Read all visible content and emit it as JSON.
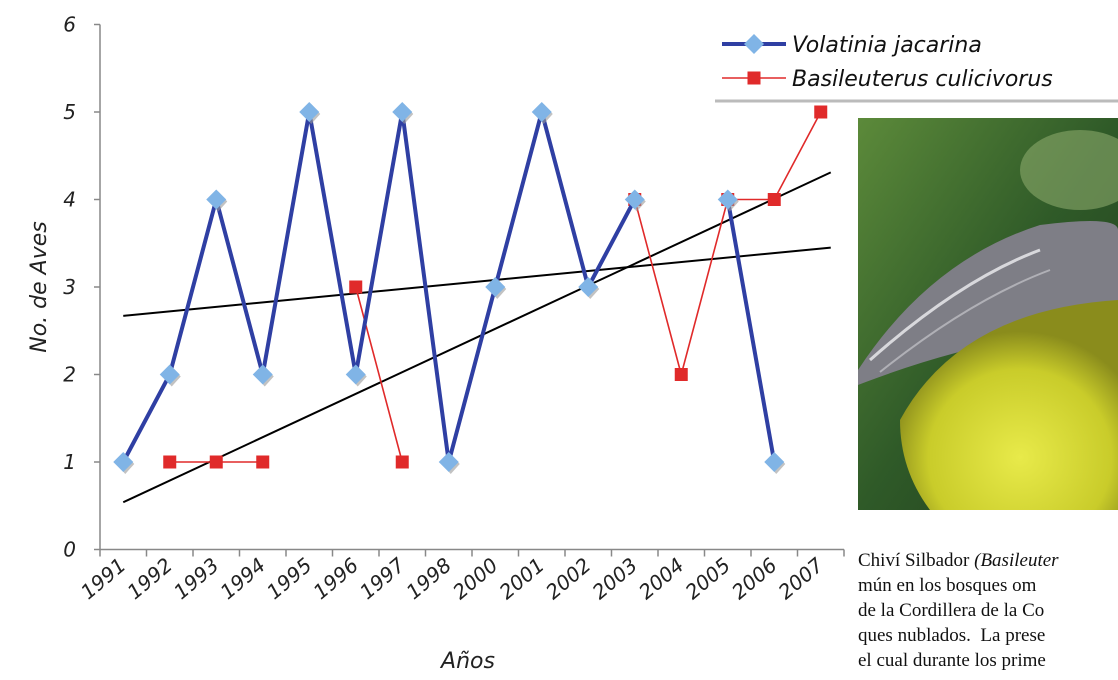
{
  "chart_data": {
    "type": "line",
    "ylabel": "No. de Aves",
    "xlabel": "Años",
    "categories": [
      "1991",
      "1992",
      "1993",
      "1994",
      "1995",
      "1996",
      "1997",
      "1998",
      "2000",
      "2001",
      "2002",
      "2003",
      "2004",
      "2005",
      "2006",
      "2007"
    ],
    "ylim": [
      0,
      6
    ],
    "yticks": [
      0,
      1,
      2,
      3,
      4,
      5,
      6
    ],
    "series": [
      {
        "name": "Volatinia jacarina",
        "color": "#2f3fa3",
        "marker_color": "#80b4e6",
        "marker": "diamond",
        "values": [
          1,
          2,
          4,
          2,
          5,
          2,
          5,
          1,
          3,
          5,
          3,
          4,
          null,
          4,
          1,
          null
        ]
      },
      {
        "name": "Basileuterus culicivorus",
        "color": "#e02a2a",
        "marker_color": "#e02a2a",
        "marker": "square",
        "values": [
          null,
          1,
          1,
          1,
          null,
          3,
          1,
          null,
          null,
          null,
          null,
          4,
          2,
          4,
          4,
          5
        ]
      }
    ],
    "trendlines": [
      {
        "color": "#000000",
        "values": [
          2.67,
          3.45
        ]
      },
      {
        "color": "#000000",
        "values": [
          0.54,
          4.31
        ]
      }
    ]
  },
  "caption": {
    "lines": [
      [
        {
          "text": "Chiví Silbador "
        },
        {
          "text": "(Basileuter",
          "italic": true
        }
      ],
      [
        {
          "text": "mún en los bosques om"
        }
      ],
      [
        {
          "text": "de la Cordillera de la Co"
        }
      ],
      [
        {
          "text": "ques nublados.  La prese"
        }
      ],
      [
        {
          "text": "el cual durante los prime"
        }
      ]
    ]
  }
}
